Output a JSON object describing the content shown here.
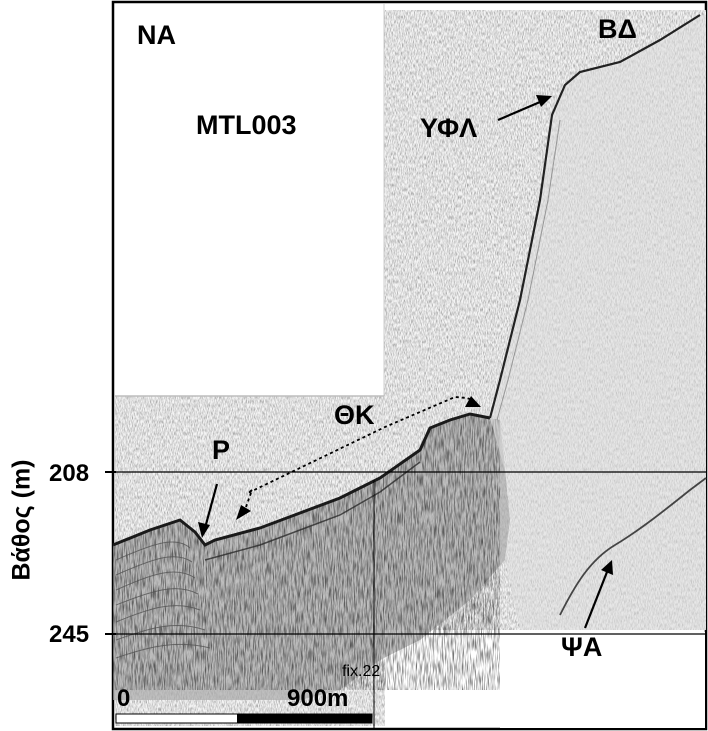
{
  "figure": {
    "profile_id": "MTL003",
    "direction_left": "ΝΑ",
    "direction_right": "ΒΔ",
    "y_axis_label": "Βάθος (m)",
    "depth_ticks": [
      "208",
      "245"
    ],
    "scale_start": "0",
    "scale_end": "900m",
    "fix_label": "fix.22",
    "annotations": {
      "p": "Ρ",
      "thk": "ΘΚ",
      "yfl": "ΥΦΛ",
      "psa": "ΨΑ"
    }
  }
}
